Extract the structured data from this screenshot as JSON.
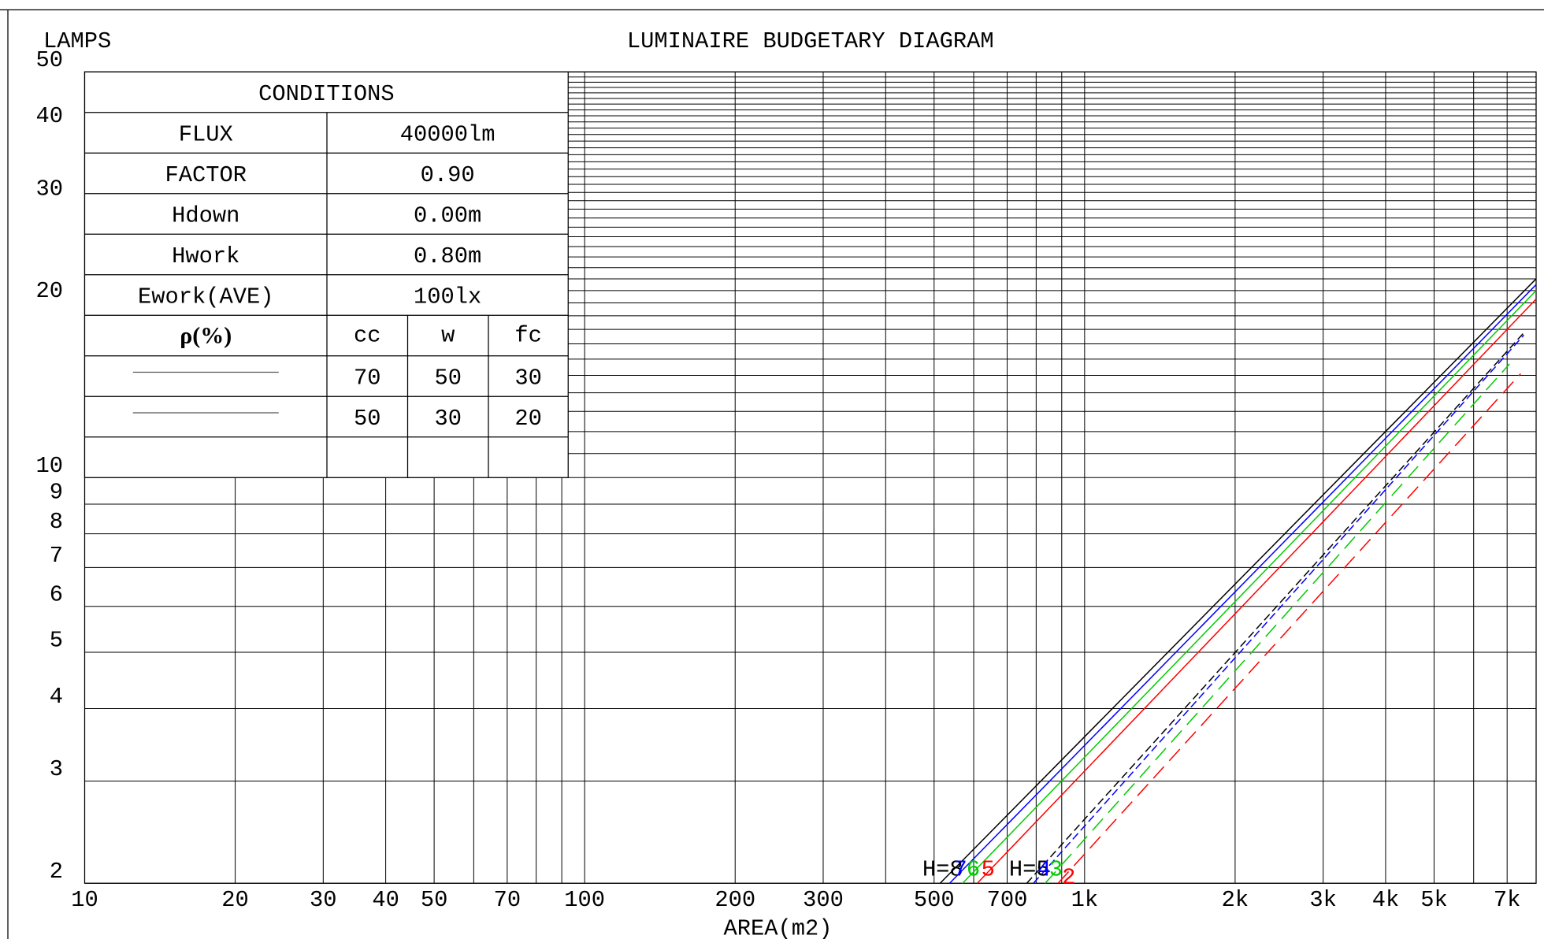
{
  "chart_data": {
    "type": "line",
    "title": "LUMINAIRE BUDGETARY DIAGRAM",
    "y_label": "LAMPS",
    "x_label": "AREA(m2)",
    "xscale": "log",
    "yscale": "log",
    "xlim": [
      10,
      8000
    ],
    "ylim": [
      2,
      50
    ],
    "xticks": [
      10,
      20,
      30,
      40,
      50,
      70,
      100,
      200,
      300,
      500,
      700,
      {
        "value": 1000,
        "label": "1k"
      },
      {
        "value": 2000,
        "label": "2k"
      },
      {
        "value": 3000,
        "label": "3k"
      },
      {
        "value": 4000,
        "label": "4k"
      },
      {
        "value": 5000,
        "label": "5k"
      },
      {
        "value": 7000,
        "label": "7k"
      }
    ],
    "yticks": [
      2,
      3,
      4,
      5,
      6,
      7,
      8,
      9,
      10,
      20,
      30,
      40,
      50
    ],
    "x_grid": [
      10,
      20,
      30,
      40,
      50,
      60,
      70,
      80,
      90,
      100,
      200,
      300,
      400,
      500,
      600,
      700,
      800,
      900,
      1000,
      2000,
      3000,
      4000,
      5000,
      6000,
      7000,
      8000
    ],
    "y_grid": [
      2,
      3,
      4,
      5,
      6,
      7,
      8,
      9,
      10,
      11,
      12,
      13,
      14,
      15,
      16,
      17,
      18,
      19,
      20,
      21,
      22,
      23,
      24,
      25,
      26,
      27,
      28,
      29,
      30,
      31,
      32,
      33,
      34,
      35,
      36,
      37,
      38,
      39,
      40,
      41,
      42,
      43,
      44,
      45,
      46,
      47,
      48,
      49,
      50
    ],
    "series": [
      {
        "name": "H=8",
        "color": "#000000",
        "dashed": false,
        "x": [
          514,
          8000
        ],
        "values": [
          2,
          22
        ]
      },
      {
        "name": "7",
        "color": "#0000ff",
        "dashed": false,
        "x": [
          537,
          8000
        ],
        "values": [
          2,
          21.5
        ]
      },
      {
        "name": "6",
        "color": "#00cc00",
        "dashed": false,
        "x": [
          570,
          8000
        ],
        "values": [
          2,
          21
        ]
      },
      {
        "name": "5",
        "color": "#ff0000",
        "dashed": false,
        "x": [
          610,
          8000
        ],
        "values": [
          2,
          20.3
        ]
      },
      {
        "name": "H=5",
        "color": "#000000",
        "dashed": true,
        "x": [
          766,
          7620
        ],
        "values": [
          2,
          17.9
        ]
      },
      {
        "name": "4",
        "color": "#0000ff",
        "dashed": true,
        "x": [
          790,
          7560
        ],
        "values": [
          2,
          17.6
        ]
      },
      {
        "name": "3",
        "color": "#00cc00",
        "dashed": true,
        "x": [
          834,
          7080
        ],
        "values": [
          2,
          15.7
        ]
      },
      {
        "name": "2",
        "color": "#ff0000",
        "dashed": true,
        "x": [
          885,
          7450
        ],
        "values": [
          2,
          15.1
        ]
      }
    ]
  },
  "conditions": {
    "title": "CONDITIONS",
    "rows": [
      [
        "FLUX",
        "40000lm"
      ],
      [
        "FACTOR",
        "0.90"
      ],
      [
        "Hdown",
        "0.00m"
      ],
      [
        "Hwork",
        "0.80m"
      ],
      [
        "Ework(AVE)",
        "100lx"
      ]
    ],
    "reflectance_header": [
      "ρ(%)",
      "cc",
      "w",
      "fc"
    ],
    "reflectance_rows": [
      [
        "70",
        "50",
        "30"
      ],
      [
        "50",
        "30",
        "20"
      ]
    ]
  }
}
